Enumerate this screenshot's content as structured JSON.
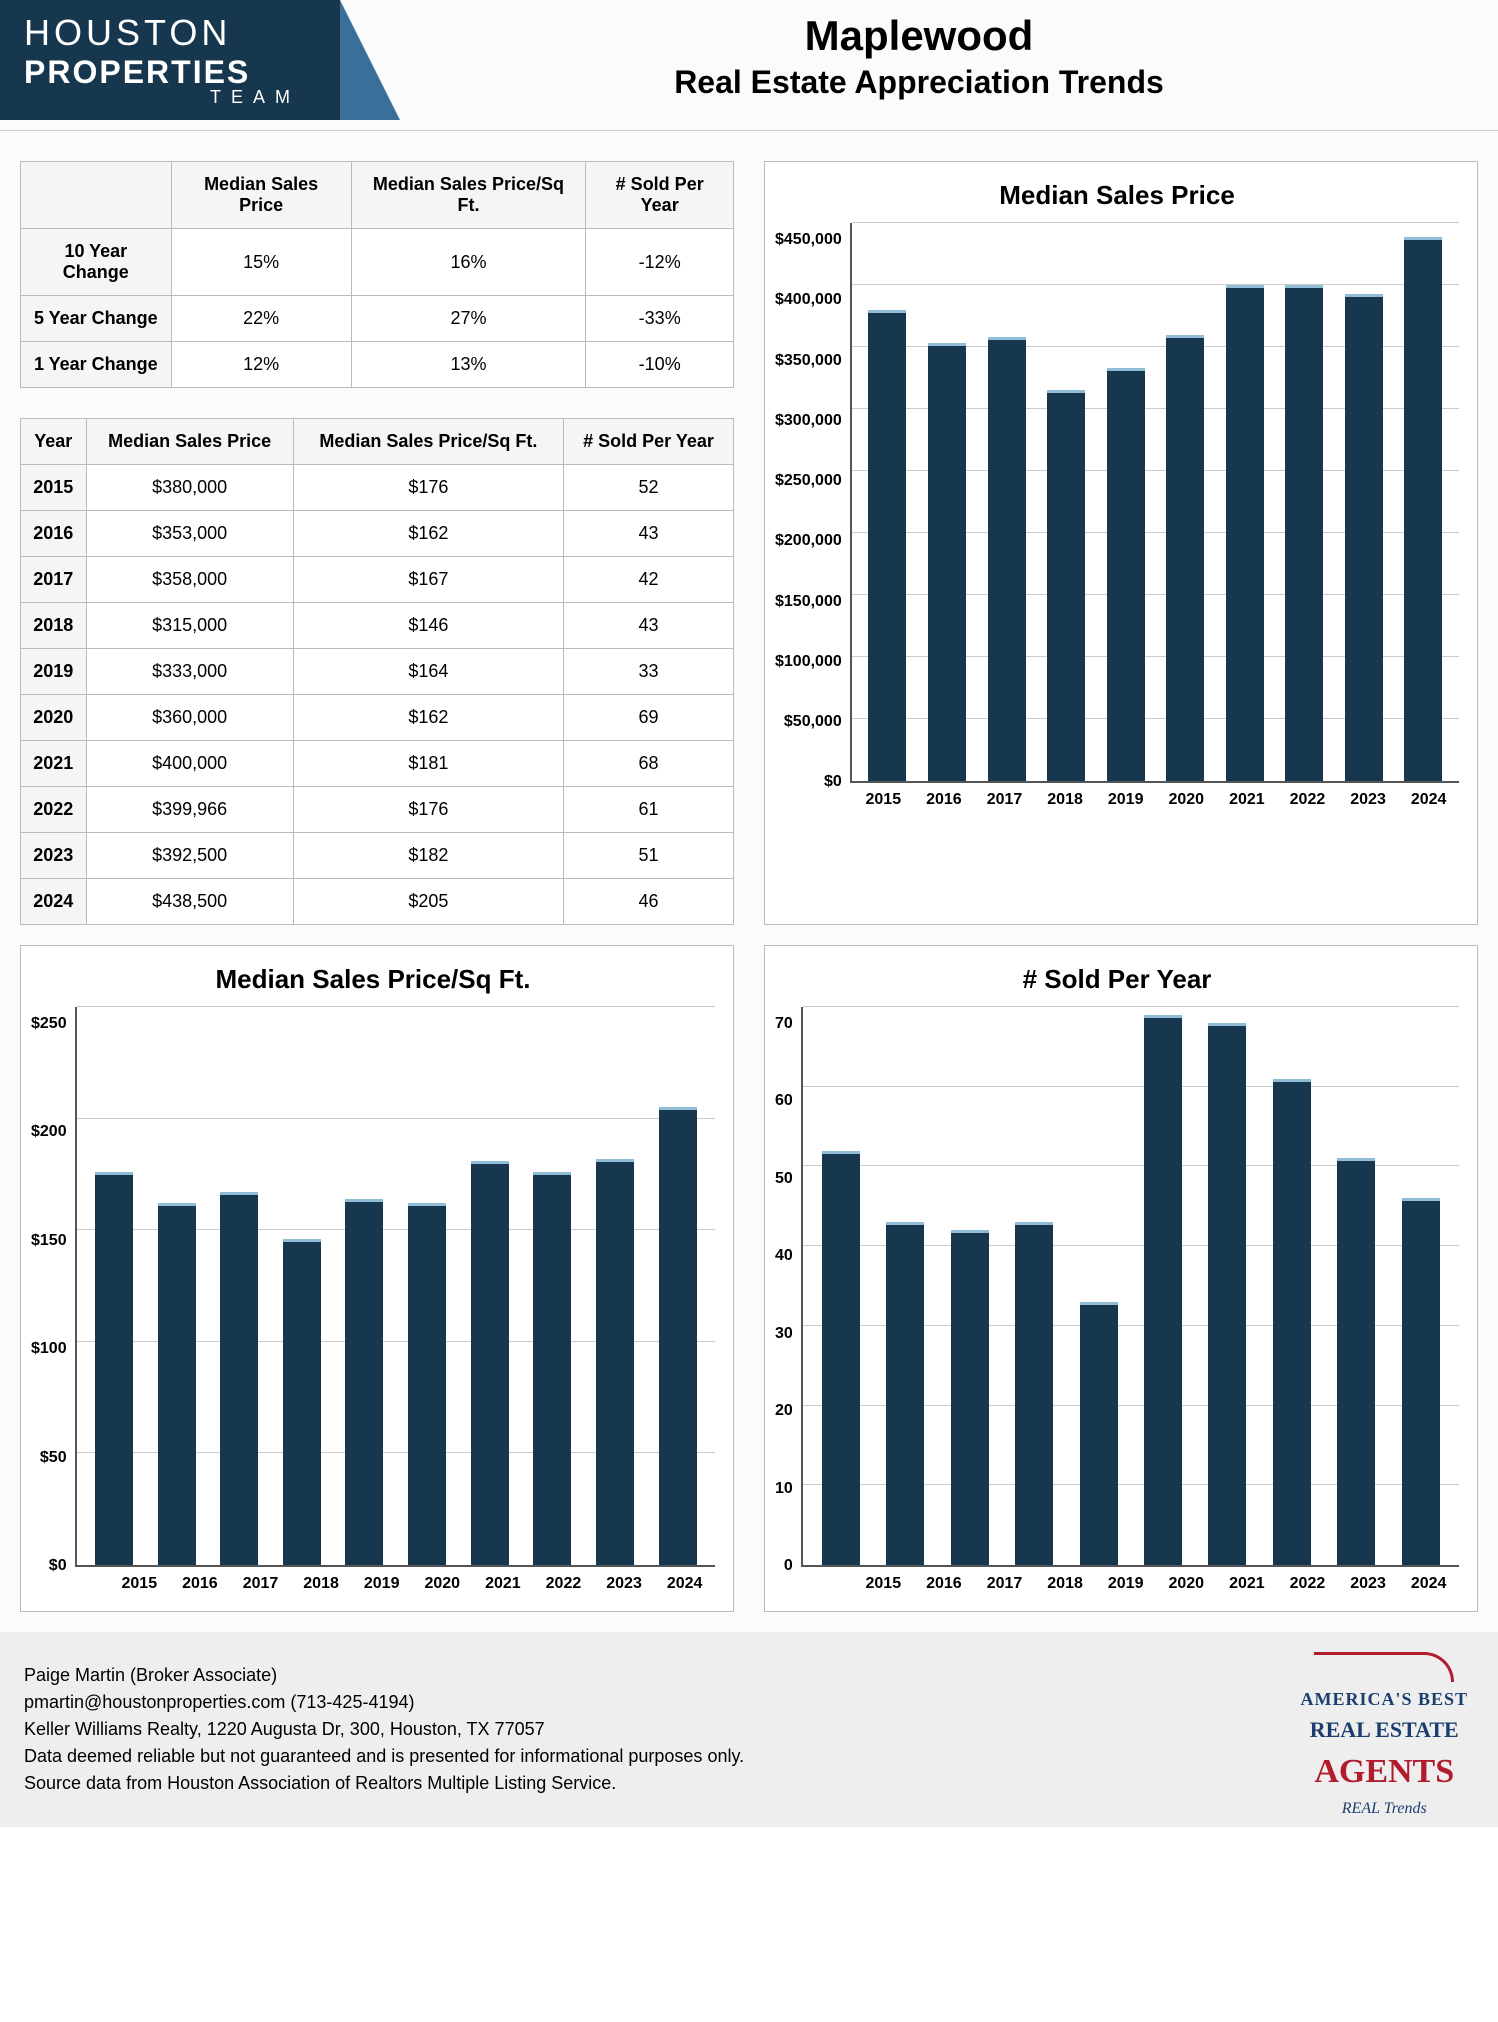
{
  "logo": {
    "line1": "HOUSTON",
    "line2": "PROPERTIES",
    "line3": "TEAM"
  },
  "title": "Maplewood",
  "subtitle": "Real Estate Appreciation Trends",
  "summary_table": {
    "columns": [
      "",
      "Median Sales Price",
      "Median Sales Price/Sq Ft.",
      "# Sold Per Year"
    ],
    "rows": [
      {
        "label": "10 Year Change",
        "price": "15%",
        "psf": "16%",
        "sold": "-12%"
      },
      {
        "label": "5 Year Change",
        "price": "22%",
        "psf": "27%",
        "sold": "-33%"
      },
      {
        "label": "1 Year Change",
        "price": "12%",
        "psf": "13%",
        "sold": "-10%"
      }
    ]
  },
  "yearly_table": {
    "columns": [
      "Year",
      "Median Sales Price",
      "Median Sales Price/Sq Ft.",
      "# Sold Per Year"
    ],
    "rows": [
      {
        "year": "2015",
        "price": "$380,000",
        "psf": "$176",
        "sold": "52"
      },
      {
        "year": "2016",
        "price": "$353,000",
        "psf": "$162",
        "sold": "43"
      },
      {
        "year": "2017",
        "price": "$358,000",
        "psf": "$167",
        "sold": "42"
      },
      {
        "year": "2018",
        "price": "$315,000",
        "psf": "$146",
        "sold": "43"
      },
      {
        "year": "2019",
        "price": "$333,000",
        "psf": "$164",
        "sold": "33"
      },
      {
        "year": "2020",
        "price": "$360,000",
        "psf": "$162",
        "sold": "69"
      },
      {
        "year": "2021",
        "price": "$400,000",
        "psf": "$181",
        "sold": "68"
      },
      {
        "year": "2022",
        "price": "$399,966",
        "psf": "$176",
        "sold": "61"
      },
      {
        "year": "2023",
        "price": "$392,500",
        "psf": "$182",
        "sold": "51"
      },
      {
        "year": "2024",
        "price": "$438,500",
        "psf": "$205",
        "sold": "46"
      }
    ]
  },
  "chart_price": {
    "type": "bar",
    "title": "Median Sales Price",
    "categories": [
      "2015",
      "2016",
      "2017",
      "2018",
      "2019",
      "2020",
      "2021",
      "2022",
      "2023",
      "2024"
    ],
    "values": [
      380000,
      353000,
      358000,
      315000,
      333000,
      360000,
      400000,
      399966,
      392500,
      438500
    ],
    "ymax": 450000,
    "ytick_step": 50000,
    "ytick_labels": [
      "$0",
      "$50,000",
      "$100,000",
      "$150,000",
      "$200,000",
      "$250,000",
      "$300,000",
      "$350,000",
      "$400,000",
      "$450,000"
    ],
    "bar_color": "#16374e",
    "bar_top_color": "#8fbdd8",
    "grid_color": "#cccccc",
    "background_color": "#ffffff"
  },
  "chart_psf": {
    "type": "bar",
    "title": "Median Sales Price/Sq Ft.",
    "categories": [
      "2015",
      "2016",
      "2017",
      "2018",
      "2019",
      "2020",
      "2021",
      "2022",
      "2023",
      "2024"
    ],
    "values": [
      176,
      162,
      167,
      146,
      164,
      162,
      181,
      176,
      182,
      205
    ],
    "ymax": 250,
    "ytick_step": 50,
    "ytick_labels": [
      "$0",
      "$50",
      "$100",
      "$150",
      "$200",
      "$250"
    ],
    "bar_color": "#16374e",
    "bar_top_color": "#8fbdd8",
    "grid_color": "#cccccc",
    "background_color": "#ffffff"
  },
  "chart_sold": {
    "type": "bar",
    "title": "# Sold Per Year",
    "categories": [
      "2015",
      "2016",
      "2017",
      "2018",
      "2019",
      "2020",
      "2021",
      "2022",
      "2023",
      "2024"
    ],
    "values": [
      52,
      43,
      42,
      43,
      33,
      69,
      68,
      61,
      51,
      46
    ],
    "ymax": 70,
    "ytick_step": 10,
    "ytick_labels": [
      "0",
      "10",
      "20",
      "30",
      "40",
      "50",
      "60",
      "70"
    ],
    "bar_color": "#16374e",
    "bar_top_color": "#8fbdd8",
    "grid_color": "#cccccc",
    "background_color": "#ffffff"
  },
  "footer": {
    "line1": "Paige Martin (Broker Associate)",
    "line2": "pmartin@houstonproperties.com (713-425-4194)",
    "line3": "Keller Williams Realty, 1220 Augusta Dr, 300, Houston, TX 77057",
    "line4": "Data deemed reliable but not guaranteed and is presented for informational purposes only.",
    "line5": "Source data from Houston Association of Realtors Multiple Listing Service."
  },
  "agent_logo": {
    "l1": "AMERICA'S BEST",
    "l2": "REAL ESTATE",
    "l3": "AGENTS",
    "l4": "REAL Trends"
  }
}
